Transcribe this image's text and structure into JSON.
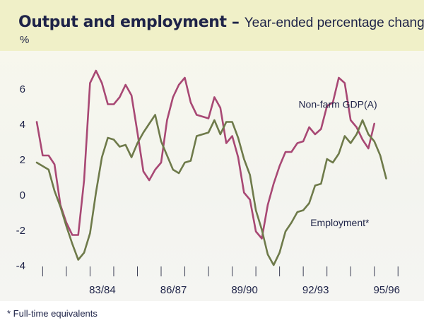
{
  "title": {
    "main": "Output and employment",
    "dash": " – ",
    "sub": "Year-ended percentage change"
  },
  "unit_label": "%",
  "footnote": "* Full-time equivalents",
  "colors": {
    "title_band": "#f0f0c8",
    "gdp": "#a84874",
    "employment": "#6e7a4a",
    "text": "#1e2348"
  },
  "chart_data": {
    "type": "line",
    "title": "Output and employment – Year-ended percentage change",
    "xlabel": "",
    "ylabel": "%",
    "ylim": [
      -4,
      7
    ],
    "yticks": [
      -4,
      -2,
      0,
      2,
      4,
      6
    ],
    "x_start": 1980.75,
    "x_step": 0.25,
    "xlim": [
      1980.75,
      1996.5
    ],
    "x_tick_labels": [
      {
        "label": "83/84",
        "x": 1984.0
      },
      {
        "label": "86/87",
        "x": 1987.0
      },
      {
        "label": "89/90",
        "x": 1990.0
      },
      {
        "label": "92/93",
        "x": 1993.0
      },
      {
        "label": "95/96",
        "x": 1996.0
      }
    ],
    "grid": false,
    "series": [
      {
        "name": "Non-farm GDP(A)",
        "color": "#a84874",
        "label_at": {
          "x": 1991.8,
          "y": 4.9
        },
        "values": [
          4.1,
          2.2,
          2.2,
          1.7,
          -0.6,
          -1.6,
          -2.3,
          -2.3,
          0.8,
          6.3,
          7.0,
          6.3,
          5.1,
          5.1,
          5.5,
          6.2,
          5.6,
          3.5,
          1.3,
          0.8,
          1.4,
          1.8,
          4.2,
          5.5,
          6.2,
          6.6,
          5.2,
          4.5,
          4.4,
          4.3,
          5.5,
          4.9,
          2.9,
          3.3,
          2.1,
          0.1,
          -0.3,
          -2.1,
          -2.5,
          -0.6,
          0.6,
          1.6,
          2.4,
          2.4,
          2.9,
          3.0,
          3.8,
          3.4,
          3.7,
          5.0,
          5.2,
          6.6,
          6.3,
          4.2,
          3.8,
          3.1,
          2.6,
          4.0
        ]
      },
      {
        "name": "Employment*",
        "color": "#6e7a4a",
        "label_at": {
          "x": 1992.3,
          "y": -1.8
        },
        "values": [
          1.8,
          1.6,
          1.4,
          0.2,
          -0.7,
          -1.8,
          -2.8,
          -3.7,
          -3.3,
          -2.2,
          0.1,
          2.1,
          3.2,
          3.1,
          2.7,
          2.8,
          2.1,
          2.9,
          3.5,
          4.0,
          4.5,
          3.0,
          2.2,
          1.4,
          1.2,
          1.8,
          1.9,
          3.3,
          3.4,
          3.5,
          4.2,
          3.4,
          4.1,
          4.1,
          3.2,
          2.0,
          1.1,
          -0.9,
          -2.0,
          -3.4,
          -4.0,
          -3.3,
          -2.1,
          -1.6,
          -1.0,
          -0.9,
          -0.5,
          0.5,
          0.6,
          2.0,
          1.8,
          2.3,
          3.3,
          2.9,
          3.4,
          4.2,
          3.4,
          3.0,
          2.2,
          0.9
        ]
      }
    ]
  }
}
